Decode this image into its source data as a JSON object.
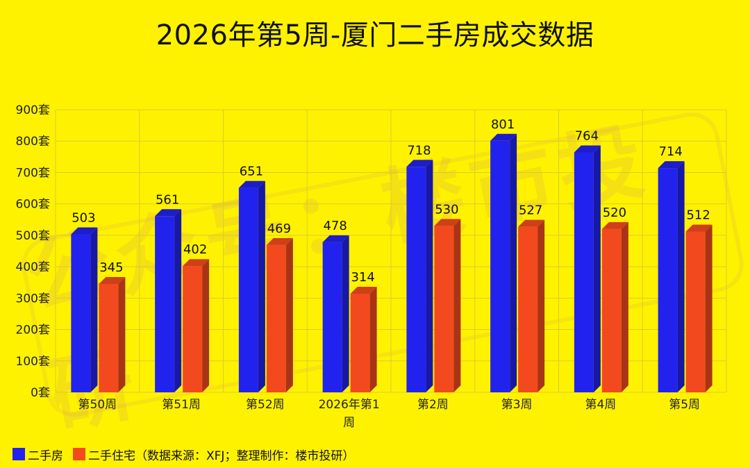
{
  "chart_data": {
    "type": "bar",
    "title": "2026年第5周-厦门二手房成交数据",
    "categories": [
      "第50周",
      "第51周",
      "第52周",
      "2026年第1周",
      "第2周",
      "第3周",
      "第4周",
      "第5周"
    ],
    "series": [
      {
        "name": "二手房",
        "values": [
          503,
          561,
          651,
          478,
          718,
          801,
          764,
          714
        ],
        "color": "#2222EE"
      },
      {
        "name": "二手住宅",
        "values": [
          345,
          402,
          469,
          314,
          530,
          527,
          520,
          512
        ],
        "color": "#F24A1E"
      }
    ],
    "y_ticks": [
      "0套",
      "100套",
      "200套",
      "300套",
      "400套",
      "500套",
      "600套",
      "700套",
      "800套",
      "900套"
    ],
    "ylim": [
      0,
      900
    ],
    "grid": true,
    "legend_position": "bottom-left",
    "legend_note": "（数据来源：XFJ；整理制作：楼市投研）"
  },
  "watermark": "公众号：楼市投研"
}
